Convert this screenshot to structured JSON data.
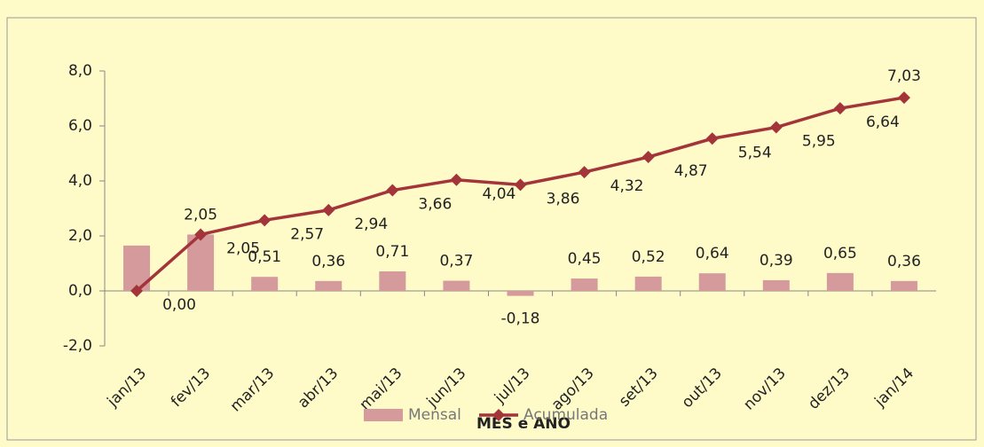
{
  "chart_data": {
    "type": "bar_line",
    "x_label": "MÊS e ANO",
    "categories": [
      "jan/13",
      "fev/13",
      "mar/13",
      "abr/13",
      "mai/13",
      "jun/13",
      "jul/13",
      "ago/13",
      "set/13",
      "out/13",
      "nov/13",
      "dez/13",
      "jan/14"
    ],
    "series": [
      {
        "name": "Mensal",
        "type": "bar",
        "color": "#d49a9c",
        "values": [
          1.65,
          2.05,
          0.51,
          0.36,
          0.71,
          0.37,
          -0.18,
          0.45,
          0.52,
          0.64,
          0.39,
          0.65,
          0.36
        ],
        "value_labels": [
          null,
          "2,05",
          "0,51",
          "0,36",
          "0,71",
          "0,37",
          "-0,18",
          "0,45",
          "0,52",
          "0,64",
          "0,39",
          "0,65",
          "0,36"
        ]
      },
      {
        "name": "Acumulada",
        "type": "line",
        "color": "#a3343a",
        "values": [
          0.0,
          2.05,
          2.57,
          2.94,
          3.66,
          4.04,
          3.86,
          4.32,
          4.87,
          5.54,
          5.95,
          6.64,
          7.03
        ],
        "value_labels": [
          "0,00",
          "2,05",
          "2,57",
          "2,94",
          "3,66",
          "4,04",
          "3,86",
          "4,32",
          "4,87",
          "5,54",
          "5,95",
          "6,64",
          "7,03"
        ]
      }
    ],
    "ylim": [
      -2,
      8
    ],
    "yticks": [
      {
        "value": -2,
        "label": "-2,0"
      },
      {
        "value": 0,
        "label": "0,0"
      },
      {
        "value": 2,
        "label": "2,0"
      },
      {
        "value": 4,
        "label": "4,0"
      },
      {
        "value": 6,
        "label": "6,0"
      },
      {
        "value": 8,
        "label": "8,0"
      }
    ],
    "legend": "bottom"
  }
}
